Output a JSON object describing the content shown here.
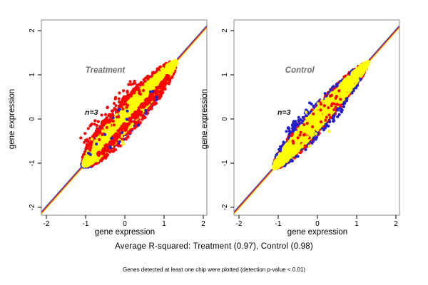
{
  "figure": {
    "caption": "Average R-squared: Treatment (0.97), Control (0.98)",
    "footnote": "Genes detected at least one chip were plotted (detection p-value < 0.01)"
  },
  "colors": {
    "point_red": "#FF0000",
    "point_blue": "#2222CC",
    "point_yellow": "#FFFF00",
    "line_red": "#EE2200",
    "line_yellow": "#FFD500",
    "line_blue": "#3333BB",
    "frame_gray": "#8a8a8a",
    "tick_black": "#000000",
    "title_gray": "#6e6e6e",
    "annotation_dark": "#111111"
  },
  "chart_data": [
    {
      "type": "scatter",
      "title": "Treatment",
      "title_pos": [
        -0.5,
        1.05
      ],
      "annotation": "n=3",
      "annotation_pos": [
        -0.85,
        0.1
      ],
      "xlabel": "gene expression",
      "ylabel": "gene expression",
      "xlim": [
        -2.13,
        2.09
      ],
      "ylim": [
        -2.24,
        2.18
      ],
      "xticks": [
        -2,
        -1,
        0,
        1,
        2
      ],
      "yticks": [
        -2,
        -1,
        0,
        1,
        2
      ],
      "grid": false,
      "identity_line": true,
      "r_squared": 0.97,
      "n_chips": 3,
      "points_extent_on_diagonal": [
        -1.05,
        1.32
      ],
      "clusters": [
        {
          "color": "blue",
          "kind": "ring",
          "n": 240,
          "t": [
            -1.08,
            1.22
          ],
          "bias": 1.15,
          "center": -0.15,
          "wmax": 0.3,
          "ring": [
            0.55,
            1.12
          ]
        },
        {
          "color": "red",
          "kind": "ring",
          "n": 620,
          "t": [
            -1.05,
            1.28
          ],
          "bias": 1.1,
          "center": -0.12,
          "wmax": 0.33,
          "ring": [
            0.5,
            1.1
          ]
        },
        {
          "color": "yellow",
          "kind": "blob",
          "n": 1700,
          "t": [
            -1.06,
            1.32
          ],
          "bias": 1.15,
          "center": -0.15,
          "wmax": 0.22
        },
        {
          "color": "red",
          "kind": "cloud",
          "n": 260,
          "t": [
            -0.75,
            1.05
          ],
          "bias": 1.0,
          "perp": [
            -0.2,
            -0.06
          ]
        },
        {
          "color": "red",
          "kind": "cloud",
          "n": 90,
          "t": [
            -0.8,
            0.6
          ],
          "bias": 1.2,
          "perp": [
            0.1,
            0.52
          ]
        },
        {
          "color": "yellow",
          "kind": "cloud",
          "n": 8,
          "t": [
            -0.95,
            0.1
          ],
          "bias": 1.0,
          "perp": [
            -0.4,
            0.3
          ]
        },
        {
          "color": "blue",
          "kind": "cloud",
          "n": 22,
          "t": [
            -0.9,
            0.7
          ],
          "bias": 1.0,
          "perp": [
            -0.35,
            0.3
          ]
        }
      ]
    },
    {
      "type": "scatter",
      "title": "Control",
      "title_pos": [
        -0.45,
        1.05
      ],
      "annotation": "n=3",
      "annotation_pos": [
        -0.85,
        0.1
      ],
      "xlabel": "gene expression",
      "ylabel": "gene expression",
      "xlim": [
        -2.13,
        2.09
      ],
      "ylim": [
        -2.24,
        2.18
      ],
      "xticks": [
        -2,
        -1,
        0,
        1,
        2
      ],
      "yticks": [
        -2,
        -1,
        0,
        1,
        2
      ],
      "grid": false,
      "identity_line": true,
      "r_squared": 0.98,
      "n_chips": 3,
      "points_extent_on_diagonal": [
        -1.12,
        1.3
      ],
      "clusters": [
        {
          "color": "red",
          "kind": "ring",
          "n": 420,
          "t": [
            -1.1,
            1.26
          ],
          "bias": 1.1,
          "center": -0.18,
          "wmax": 0.24,
          "ring": [
            0.6,
            1.12
          ]
        },
        {
          "color": "blue",
          "kind": "ring",
          "n": 200,
          "t": [
            -1.1,
            1.2
          ],
          "bias": 1.1,
          "center": -0.18,
          "wmax": 0.26,
          "ring": [
            0.6,
            1.15
          ]
        },
        {
          "color": "blue",
          "kind": "cloud",
          "n": 55,
          "t": [
            -0.55,
            0.1
          ],
          "bias": 1.0,
          "perp": [
            0.12,
            0.4
          ]
        },
        {
          "color": "blue",
          "kind": "cloud",
          "n": 30,
          "t": [
            0.0,
            0.55
          ],
          "bias": 1.0,
          "perp": [
            -0.35,
            -0.1
          ]
        },
        {
          "color": "yellow",
          "kind": "blob",
          "n": 1700,
          "t": [
            -1.12,
            1.3
          ],
          "bias": 1.15,
          "center": -0.2,
          "wmax": 0.18
        },
        {
          "color": "red",
          "kind": "cloud",
          "n": 45,
          "t": [
            -0.6,
            0.7
          ],
          "bias": 1.0,
          "perp": [
            -0.24,
            0.24
          ]
        },
        {
          "color": "yellow",
          "kind": "cloud",
          "n": 12,
          "t": [
            -0.5,
            0.5
          ],
          "bias": 1.0,
          "perp": [
            -0.42,
            0.42
          ]
        }
      ]
    }
  ]
}
